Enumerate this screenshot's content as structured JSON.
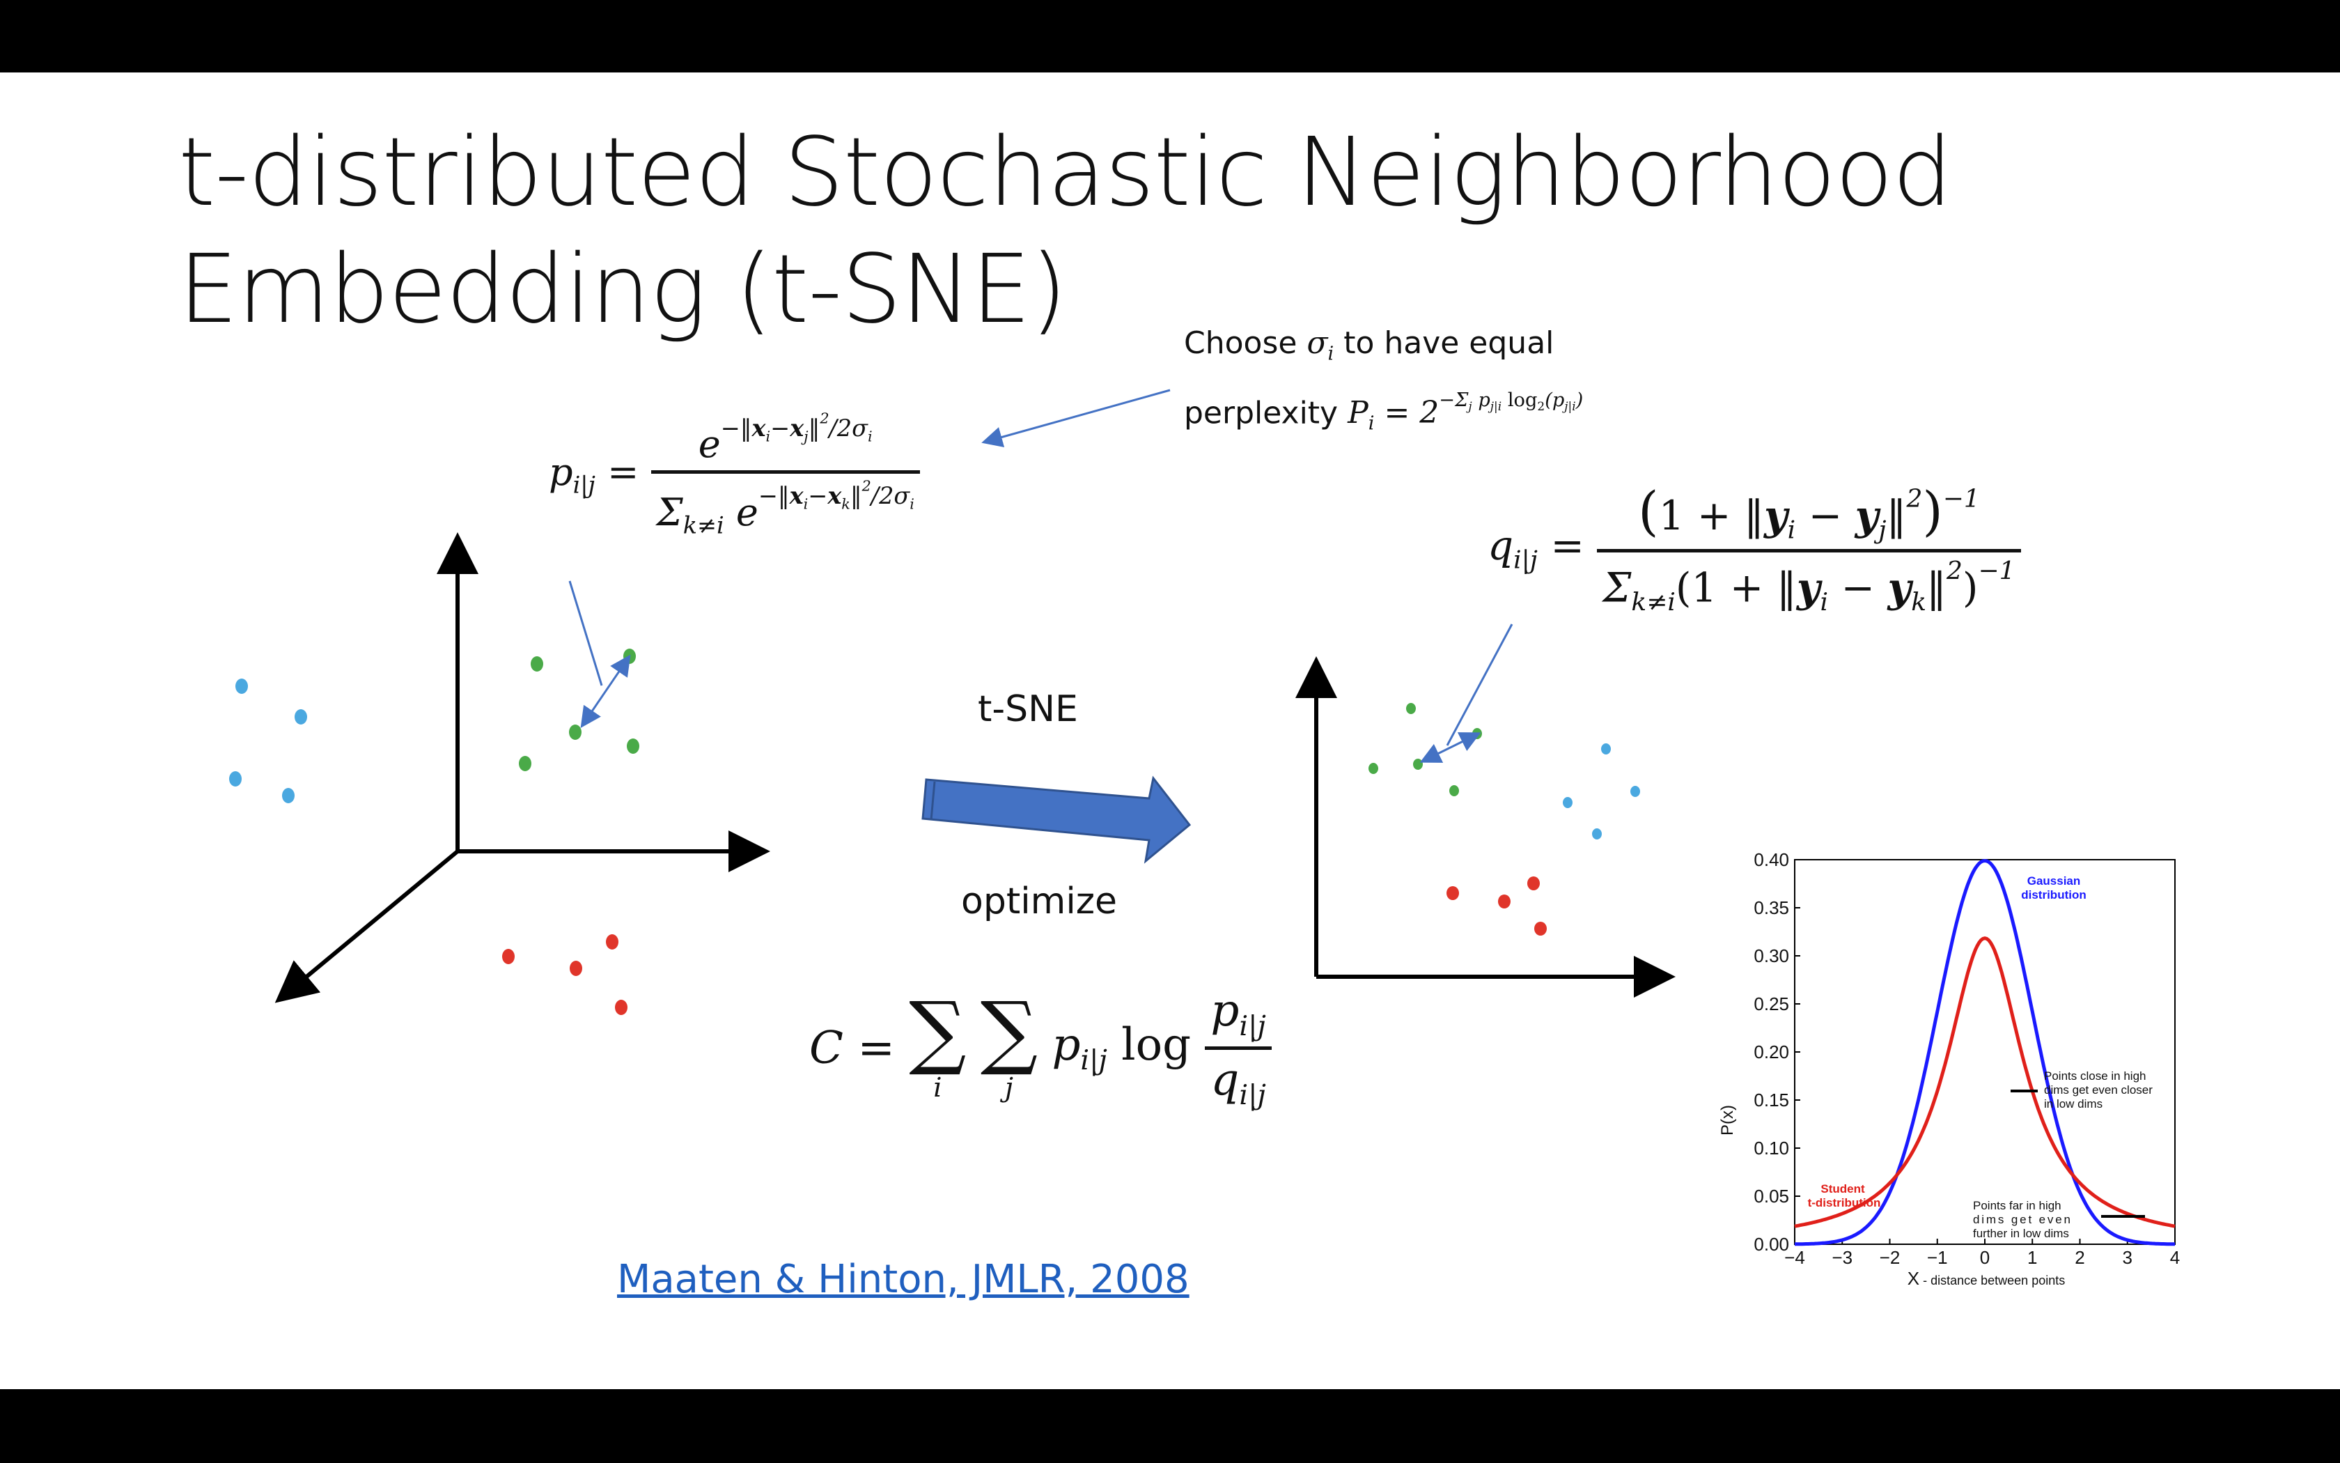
{
  "slide": {
    "title_line1": "t-distributed Stochastic Neighborhood",
    "title_line2": "Embedding (t-SNE)",
    "note_line1_a": "Choose ",
    "note_line1_b": " to have equal",
    "note_line2_a": "perplexity ",
    "arrow_top_label": "t-SNE",
    "arrow_bottom_label": "optimize",
    "citation": "Maaten & Hinton, JMLR, 2008"
  },
  "chart_data": {
    "type": "line",
    "x": [
      -4,
      -3.5,
      -3,
      -2.5,
      -2,
      -1.5,
      -1,
      -0.5,
      0,
      0.5,
      1,
      1.5,
      2,
      2.5,
      3,
      3.5,
      4
    ],
    "series": [
      {
        "name": "Gaussian distribution",
        "color": "#1a1aff",
        "function": "normal pdf"
      },
      {
        "name": "Student t-distribution",
        "color": "#e0201a",
        "function": "student t pdf, 1 dof"
      }
    ],
    "xlim": [
      -4,
      4
    ],
    "ylim": [
      0,
      0.4
    ],
    "xticks": [
      "−4",
      "−3",
      "−2",
      "−1",
      "0",
      "1",
      "2",
      "3",
      "4"
    ],
    "yticks": [
      "0.00",
      "0.05",
      "0.10",
      "0.15",
      "0.20",
      "0.25",
      "0.30",
      "0.35",
      "0.40"
    ],
    "xlabel_main": "X",
    "xlabel_rest": " - distance between points",
    "ylabel": "P(x)",
    "gaussian_label_1": "Gaussian",
    "gaussian_label_2": "distribution",
    "student_label_1": "Student",
    "student_label_2": "t-distribution",
    "close_note_1": "Points close in high",
    "close_note_2": "dims get even closer",
    "close_note_3": "in low dims",
    "far_note_1": "Points far in high",
    "far_note_2": "dims get even",
    "far_note_3": "further in low dims"
  },
  "colors": {
    "blue_points": "#4aa8e0",
    "green_points": "#4aaa48",
    "red_points": "#e0352a",
    "arrow_fill": "#4472c4",
    "arrow_stroke": "#2f528f",
    "annotation_line": "#4472c4"
  }
}
